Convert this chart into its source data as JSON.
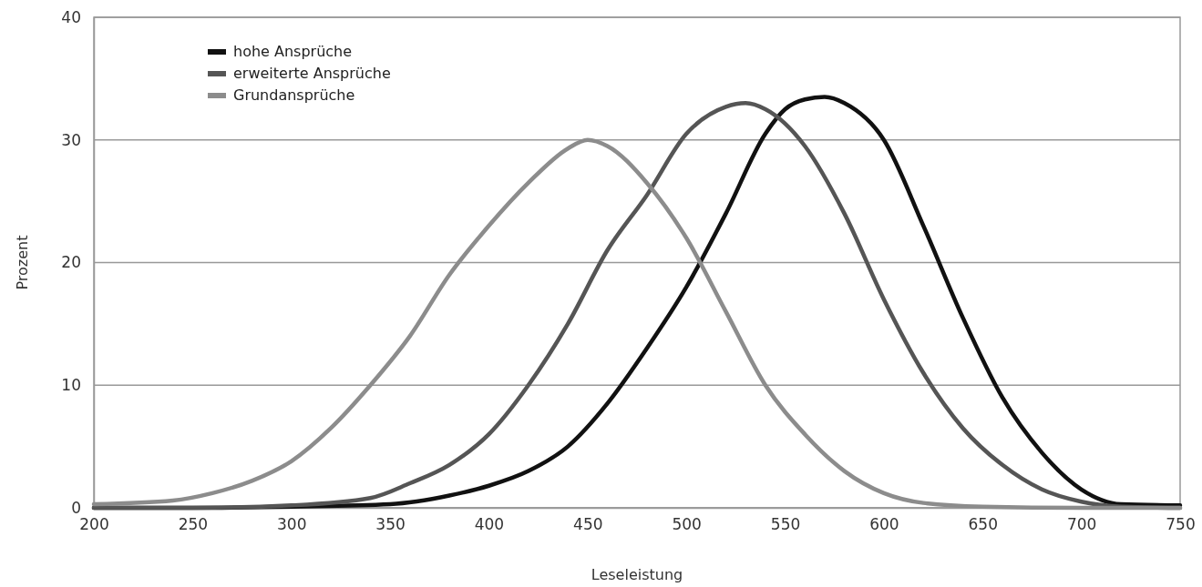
{
  "chart_data": {
    "type": "line",
    "xlabel": "Leseleistung",
    "ylabel": "Prozent",
    "xlim": [
      200,
      750
    ],
    "xticks": [
      200,
      250,
      300,
      350,
      400,
      450,
      500,
      550,
      600,
      650,
      700,
      750
    ],
    "ylim": [
      0,
      40
    ],
    "yticks": [
      0,
      10,
      20,
      30,
      40
    ],
    "grid": "y",
    "legend": "top left",
    "marker": "none",
    "line_style": "solid",
    "series": [
      {
        "name": "hohe Ansprüche",
        "color": "#111111",
        "x": [
          200,
          250,
          300,
          350,
          380,
          400,
          420,
          440,
          460,
          480,
          500,
          520,
          540,
          550,
          560,
          570,
          580,
          600,
          620,
          640,
          660,
          680,
          700,
          720,
          750
        ],
        "values": [
          0,
          0,
          0.1,
          0.3,
          1,
          1.8,
          3,
          5,
          8.5,
          13,
          18,
          24,
          30.5,
          32.5,
          33.3,
          33.5,
          33,
          30,
          23,
          15.5,
          9,
          4.5,
          1.5,
          0.3,
          0.2
        ]
      },
      {
        "name": "erweiterte Ansprüche",
        "color": "#555555",
        "x": [
          200,
          250,
          300,
          340,
          360,
          380,
          400,
          420,
          440,
          460,
          480,
          500,
          520,
          530,
          540,
          560,
          580,
          600,
          620,
          640,
          660,
          680,
          700,
          720,
          750
        ],
        "values": [
          0,
          0,
          0.2,
          0.8,
          2,
          3.5,
          6,
          10,
          15,
          21,
          25.5,
          30.5,
          32.7,
          33,
          32.5,
          29.5,
          24,
          17,
          11,
          6.5,
          3.5,
          1.5,
          0.5,
          0.1,
          0
        ]
      },
      {
        "name": "Grundansprüche",
        "color": "#8c8c8c",
        "x": [
          200,
          240,
          260,
          280,
          300,
          320,
          340,
          360,
          380,
          400,
          420,
          440,
          450,
          460,
          480,
          500,
          520,
          540,
          560,
          580,
          600,
          620,
          650,
          700,
          750
        ],
        "values": [
          0.3,
          0.6,
          1.2,
          2.2,
          3.8,
          6.5,
          10,
          14,
          19,
          23,
          26.5,
          29.3,
          30,
          29.5,
          26.5,
          22,
          16,
          10,
          6,
          3,
          1.2,
          0.4,
          0.1,
          0,
          0
        ]
      }
    ]
  }
}
